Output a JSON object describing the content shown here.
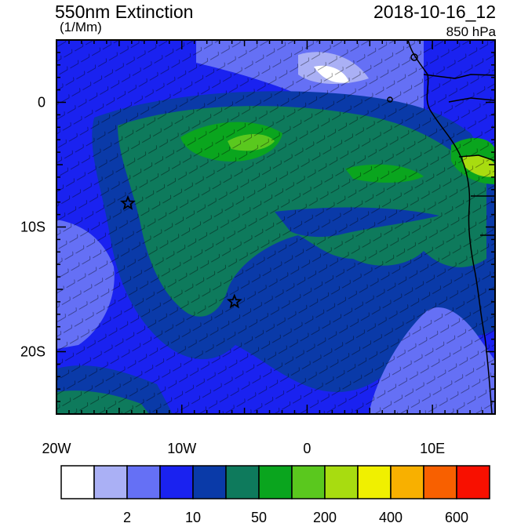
{
  "header": {
    "title": "550nm Extinction",
    "units": "(1/Mm)",
    "datetime": "2018-10-16_12",
    "level": "850 hPa"
  },
  "axes": {
    "lon_labels": [
      {
        "value": -20,
        "text": "20W"
      },
      {
        "value": -10,
        "text": "10W"
      },
      {
        "value": 0,
        "text": "0"
      },
      {
        "value": 10,
        "text": "10E"
      }
    ],
    "lat_labels": [
      {
        "value": 0,
        "text": "0"
      },
      {
        "value": -10,
        "text": "10S"
      },
      {
        "value": -20,
        "text": "20S"
      }
    ],
    "lon_range": [
      -20,
      15
    ],
    "lat_range": [
      -25,
      5
    ]
  },
  "colorbar": {
    "colors": [
      "#ffffff",
      "#aab0f5",
      "#6570f5",
      "#1a22f0",
      "#0a3aa8",
      "#0e7a5c",
      "#0aa51e",
      "#5ac81e",
      "#a8dc10",
      "#f0f000",
      "#f8b000",
      "#f86000",
      "#f81000"
    ],
    "labels": [
      {
        "boundary": 2,
        "text": "2"
      },
      {
        "boundary": 4,
        "text": "10"
      },
      {
        "boundary": 6,
        "text": "50"
      },
      {
        "boundary": 8,
        "text": "200"
      },
      {
        "boundary": 10,
        "text": "400"
      },
      {
        "boundary": 12,
        "text": "600"
      }
    ]
  },
  "markers": [
    {
      "name": "star-marker-west",
      "lon": -14.3,
      "lat": -8.1
    },
    {
      "name": "star-marker-central",
      "lon": -5.8,
      "lat": -16.0
    }
  ]
}
